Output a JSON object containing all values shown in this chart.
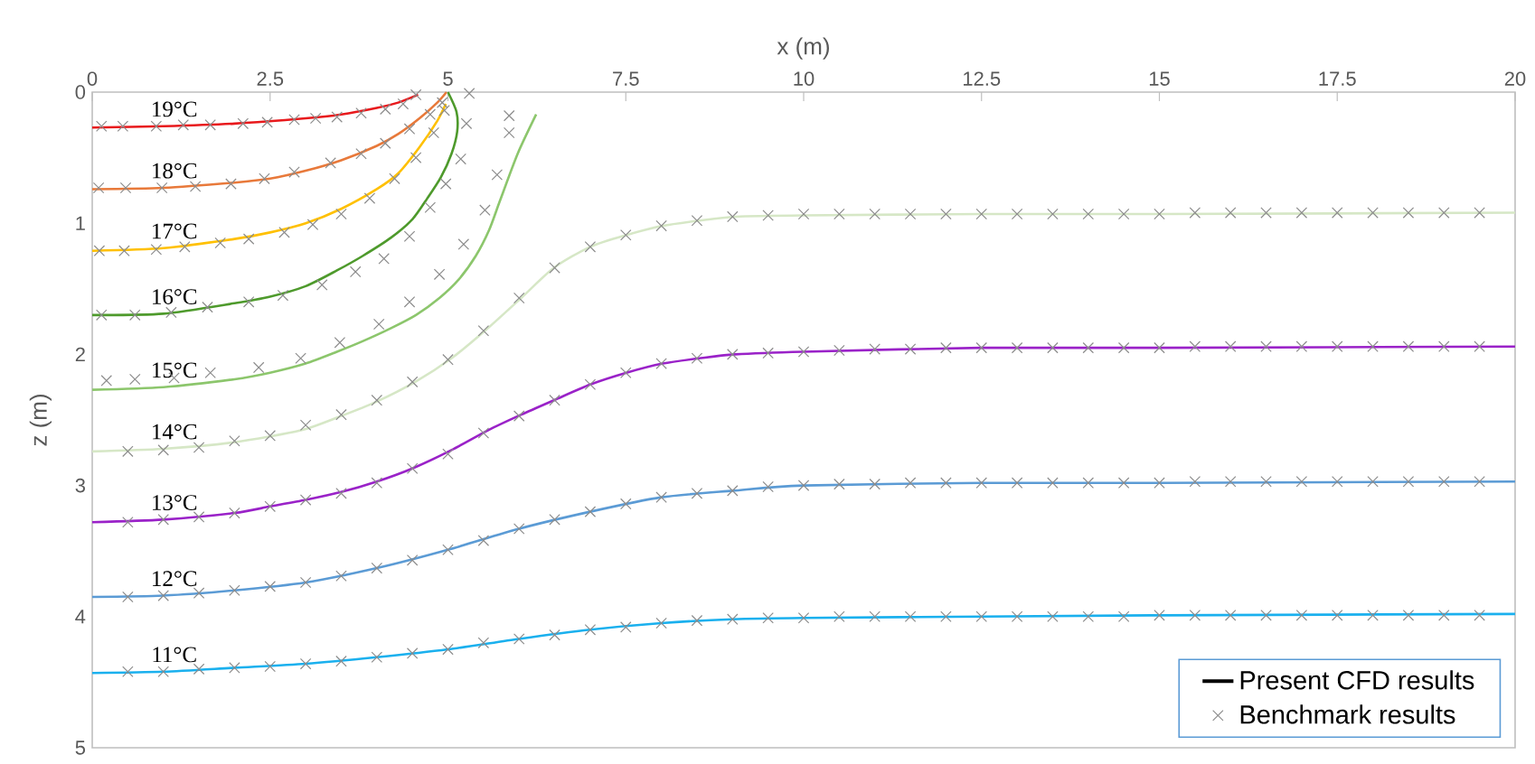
{
  "chart_data": {
    "type": "line",
    "xlabel": "x (m)",
    "ylabel": "z (m)",
    "xlim": [
      0,
      20
    ],
    "xticks": [
      0,
      2.5,
      5,
      7.5,
      10,
      12.5,
      15,
      17.5,
      20
    ],
    "ylim": [
      5,
      0
    ],
    "yticks": [
      0,
      1,
      2,
      3,
      4,
      5
    ],
    "legend": "bottom right",
    "annotations": [
      "Present CFD results"
    ],
    "series": [
      {
        "name": "19°C",
        "color": "#e8191c",
        "x": [
          0,
          1,
          2,
          3,
          3.5,
          4,
          4.3,
          4.58
        ],
        "values": [
          0.27,
          0.26,
          0.24,
          0.2,
          0.17,
          0.12,
          0.08,
          0.02
        ]
      },
      {
        "name": "18°C",
        "color": "#e8793a",
        "x": [
          0,
          1,
          2,
          2.5,
          3,
          3.5,
          4,
          4.3,
          4.6,
          4.85,
          4.98
        ],
        "values": [
          0.74,
          0.73,
          0.69,
          0.66,
          0.6,
          0.52,
          0.41,
          0.32,
          0.2,
          0.08,
          0.0
        ]
      },
      {
        "name": "17°C",
        "color": "#ffc000",
        "x": [
          0,
          1,
          2,
          2.5,
          3,
          3.5,
          4,
          4.3,
          4.6,
          4.85,
          4.97
        ],
        "values": [
          1.21,
          1.19,
          1.12,
          1.07,
          1.0,
          0.89,
          0.74,
          0.62,
          0.42,
          0.22,
          0.09
        ]
      },
      {
        "name": "16°C",
        "color": "#4e9a2c",
        "x": [
          0,
          1,
          2,
          2.5,
          3,
          3.44,
          3.8,
          4.2,
          4.5,
          4.71,
          4.9,
          5.05,
          5.13,
          5.12,
          5.0
        ],
        "values": [
          1.7,
          1.69,
          1.61,
          1.56,
          1.48,
          1.36,
          1.25,
          1.11,
          0.97,
          0.81,
          0.65,
          0.47,
          0.3,
          0.15,
          0.0
        ]
      },
      {
        "name": "15°C",
        "color": "#8cc66c",
        "x": [
          0,
          1,
          2,
          2.5,
          3,
          3.44,
          3.8,
          4.2,
          4.55,
          4.88,
          5.15,
          5.39,
          5.58,
          5.73,
          5.98,
          6.24
        ],
        "values": [
          2.27,
          2.25,
          2.19,
          2.14,
          2.07,
          1.98,
          1.9,
          1.8,
          1.7,
          1.57,
          1.43,
          1.25,
          1.05,
          0.83,
          0.47,
          0.17
        ]
      },
      {
        "name": "14°C",
        "color": "#d6e7c6",
        "x": [
          0,
          1,
          2,
          2.93,
          3.5,
          4,
          4.54,
          5.05,
          5.52,
          6.03,
          6.49,
          7,
          7.51,
          8.02,
          8.53,
          9.04,
          10,
          12.5,
          15,
          20
        ],
        "values": [
          2.74,
          2.72,
          2.67,
          2.58,
          2.47,
          2.36,
          2.21,
          2.03,
          1.82,
          1.57,
          1.34,
          1.18,
          1.09,
          1.02,
          0.98,
          0.95,
          0.94,
          0.93,
          0.93,
          0.92
        ]
      },
      {
        "name": "13°C",
        "color": "#9a22c8",
        "x": [
          0,
          1,
          2,
          2.5,
          3,
          3.5,
          4,
          4.5,
          5.05,
          5.56,
          6.03,
          6.49,
          7,
          7.51,
          8.02,
          8.53,
          9.04,
          10,
          12.5,
          15,
          20
        ],
        "values": [
          3.28,
          3.26,
          3.21,
          3.16,
          3.11,
          3.05,
          2.97,
          2.87,
          2.73,
          2.58,
          2.46,
          2.35,
          2.23,
          2.14,
          2.07,
          2.03,
          2.0,
          1.98,
          1.95,
          1.95,
          1.94
        ]
      },
      {
        "name": "12°C",
        "color": "#5b9bd5",
        "x": [
          0,
          1,
          2,
          3,
          4,
          5,
          6,
          7,
          8,
          9,
          10,
          12.5,
          15,
          20
        ],
        "values": [
          3.85,
          3.84,
          3.8,
          3.74,
          3.63,
          3.49,
          3.33,
          3.2,
          3.09,
          3.04,
          3.0,
          2.98,
          2.98,
          2.97
        ]
      },
      {
        "name": "11°C",
        "color": "#1ab0ee",
        "x": [
          0,
          1,
          2,
          3,
          4,
          5,
          6,
          7,
          8,
          9,
          10,
          12.5,
          15,
          20
        ],
        "values": [
          4.43,
          4.42,
          4.39,
          4.36,
          4.31,
          4.25,
          4.17,
          4.1,
          4.05,
          4.02,
          4.01,
          4.0,
          3.99,
          3.98
        ]
      },
      {
        "type": "scatter",
        "name": "Benchmark results",
        "color": "#8c8c8c",
        "marker": "cross",
        "x": [
          0.13,
          0.43,
          0.9,
          1.28,
          1.66,
          2.12,
          2.46,
          2.84,
          3.14,
          3.44,
          3.78,
          4.12,
          4.37,
          4.55,
          0.09,
          0.47,
          0.98,
          1.45,
          1.95,
          2.42,
          2.84,
          3.35,
          3.78,
          4.12,
          4.46,
          4.75,
          4.92,
          0.1,
          0.45,
          0.9,
          1.3,
          1.8,
          2.2,
          2.7,
          3.1,
          3.5,
          3.9,
          4.25,
          4.55,
          4.8,
          4.95,
          0.13,
          0.6,
          1.11,
          1.62,
          2.2,
          2.68,
          3.23,
          3.7,
          4.1,
          4.46,
          4.75,
          4.97,
          5.18,
          5.26,
          5.3,
          0.2,
          0.6,
          1.15,
          1.66,
          2.34,
          2.93,
          3.48,
          4.03,
          4.46,
          4.88,
          5.22,
          5.52,
          5.69,
          5.86,
          5.86,
          0.5,
          1,
          1.5,
          2,
          2.5,
          3,
          3.5,
          4,
          4.5,
          5,
          5.5,
          6,
          6.5,
          7,
          7.5,
          8,
          8.5,
          9,
          9.5,
          10,
          10.5,
          11,
          11.5,
          12,
          12.5,
          13,
          13.5,
          14,
          14.5,
          15,
          15.5,
          16,
          16.5,
          17,
          17.5,
          18,
          18.5,
          19,
          19.5,
          0.5,
          1,
          1.5,
          2,
          2.5,
          3,
          3.5,
          4,
          4.5,
          5,
          5.5,
          6,
          6.5,
          7,
          7.5,
          8,
          8.5,
          9,
          9.5,
          10,
          10.5,
          11,
          11.5,
          12,
          12.5,
          13,
          13.5,
          14,
          14.5,
          15,
          15.5,
          16,
          16.5,
          17,
          17.5,
          18,
          18.5,
          19,
          19.5,
          0.5,
          1,
          1.5,
          2,
          2.5,
          3,
          3.5,
          4,
          4.5,
          5,
          5.5,
          6,
          6.5,
          7,
          7.5,
          8,
          8.5,
          9,
          9.5,
          10,
          10.5,
          11,
          11.5,
          12,
          12.5,
          13,
          13.5,
          14,
          14.5,
          15,
          15.5,
          16,
          16.5,
          17,
          17.5,
          18,
          18.5,
          19,
          19.5,
          0.5,
          1,
          1.5,
          2,
          2.5,
          3,
          3.5,
          4,
          4.5,
          5,
          5.5,
          6,
          6.5,
          7,
          7.5,
          8,
          8.5,
          9,
          9.5,
          10,
          10.5,
          11,
          11.5,
          12,
          12.5,
          13,
          13.5,
          14,
          14.5,
          15,
          15.5,
          16,
          16.5,
          17,
          17.5,
          18,
          18.5,
          19,
          19.5
        ],
        "values": [
          0.26,
          0.26,
          0.26,
          0.25,
          0.25,
          0.24,
          0.23,
          0.21,
          0.2,
          0.19,
          0.16,
          0.13,
          0.09,
          0.02,
          0.73,
          0.73,
          0.73,
          0.72,
          0.7,
          0.66,
          0.61,
          0.54,
          0.47,
          0.39,
          0.28,
          0.17,
          0.08,
          1.21,
          1.21,
          1.2,
          1.18,
          1.15,
          1.12,
          1.07,
          1.01,
          0.93,
          0.81,
          0.66,
          0.5,
          0.31,
          0.14,
          1.7,
          1.7,
          1.68,
          1.64,
          1.6,
          1.55,
          1.47,
          1.37,
          1.27,
          1.1,
          0.88,
          0.7,
          0.51,
          0.24,
          0.01,
          2.2,
          2.19,
          2.18,
          2.14,
          2.1,
          2.03,
          1.91,
          1.77,
          1.6,
          1.39,
          1.16,
          0.9,
          0.63,
          0.31,
          0.18,
          2.74,
          2.73,
          2.71,
          2.66,
          2.62,
          2.54,
          2.46,
          2.35,
          2.21,
          2.04,
          1.82,
          1.57,
          1.34,
          1.18,
          1.09,
          1.02,
          0.98,
          0.95,
          0.94,
          0.93,
          0.93,
          0.93,
          0.93,
          0.93,
          0.93,
          0.93,
          0.93,
          0.93,
          0.93,
          0.93,
          0.92,
          0.92,
          0.92,
          0.92,
          0.92,
          0.92,
          0.92,
          0.92,
          0.92,
          3.28,
          3.26,
          3.24,
          3.21,
          3.16,
          3.11,
          3.06,
          2.98,
          2.87,
          2.76,
          2.6,
          2.47,
          2.35,
          2.23,
          2.14,
          2.07,
          2.03,
          2.0,
          1.99,
          1.98,
          1.97,
          1.96,
          1.96,
          1.95,
          1.95,
          1.95,
          1.95,
          1.95,
          1.95,
          1.95,
          1.94,
          1.94,
          1.94,
          1.94,
          1.94,
          1.94,
          1.94,
          1.94,
          1.94,
          3.85,
          3.84,
          3.82,
          3.8,
          3.77,
          3.74,
          3.69,
          3.63,
          3.57,
          3.49,
          3.42,
          3.33,
          3.26,
          3.2,
          3.14,
          3.09,
          3.06,
          3.04,
          3.01,
          3.0,
          2.99,
          2.99,
          2.98,
          2.98,
          2.98,
          2.98,
          2.98,
          2.98,
          2.98,
          2.98,
          2.97,
          2.97,
          2.97,
          2.97,
          2.97,
          2.97,
          2.97,
          2.97,
          2.97,
          4.42,
          4.42,
          4.4,
          4.39,
          4.38,
          4.36,
          4.34,
          4.31,
          4.28,
          4.25,
          4.2,
          4.17,
          4.14,
          4.1,
          4.08,
          4.05,
          4.03,
          4.02,
          4.01,
          4.01,
          4.0,
          4.0,
          4.0,
          4.0,
          4.0,
          4.0,
          4.0,
          4.0,
          4.0,
          3.99,
          3.99,
          3.99,
          3.99,
          3.99,
          3.99,
          3.99,
          3.99,
          3.99,
          3.99
        ]
      }
    ]
  }
}
